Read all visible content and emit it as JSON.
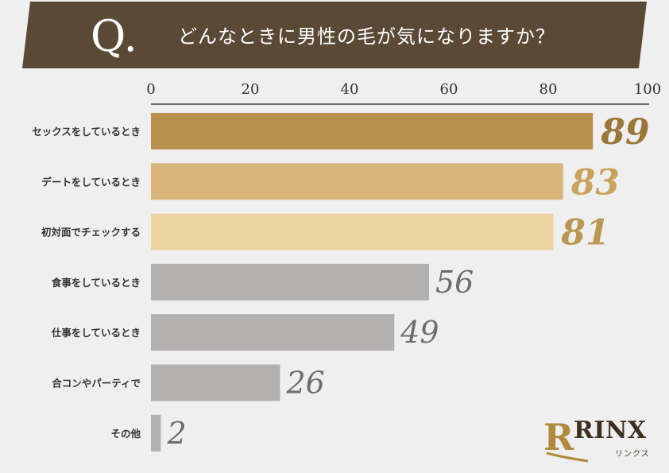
{
  "header": {
    "q_mark": "Q.",
    "question": "どんなときに男性の毛が気になりますか？"
  },
  "colors": {
    "banner": "#5a4a35",
    "top_1": "#b8914f",
    "top_2": "#d8b67a",
    "top_3": "#edd4a2",
    "other": "#b3b0b0",
    "label_top_1": "#9a7638",
    "label_top_2": "#c9a35c",
    "label_top_3": "#ba9853",
    "label_other": "#6f6d6d"
  },
  "chart_data": {
    "type": "bar",
    "orientation": "horizontal",
    "title": "どんなときに男性の毛が気になりますか？",
    "categories": [
      "セックスをしているとき",
      "デートをしているとき",
      "初対面でチェックする",
      "食事をしているとき",
      "仕事をしているとき",
      "合コンやパーティで",
      "その他"
    ],
    "values": [
      89,
      83,
      81,
      56,
      49,
      26,
      2
    ],
    "value_labels": [
      "89",
      "83",
      "81",
      "56",
      "49",
      "26",
      "2"
    ],
    "bar_color_keys": [
      "top_1",
      "top_2",
      "top_3",
      "other",
      "other",
      "other",
      "other"
    ],
    "xlim": [
      0,
      100
    ],
    "xticks": [
      0,
      20,
      40,
      60,
      80,
      100
    ],
    "xtick_labels": [
      "0",
      "20",
      "40",
      "60",
      "80",
      "100"
    ],
    "axis_position": "top",
    "grid": false,
    "legend": "none"
  },
  "brand": {
    "initial": "R",
    "name": "RINX",
    "subtitle": "リンクス"
  }
}
